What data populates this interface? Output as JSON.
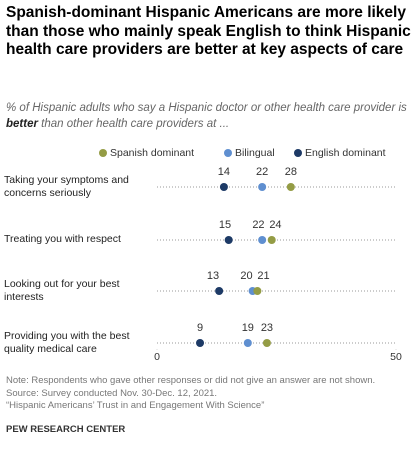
{
  "chart_data": {
    "type": "dot",
    "title": "Spanish-dominant Hispanic Americans are more likely than those who mainly speak English to think Hispanic health care providers are better at key aspects of care",
    "subtitle": [
      "% of Hispanic adults who say a Hispanic doctor or other health care provider is ",
      "better",
      " than other health care providers at ..."
    ],
    "categories": [
      "Taking your symptoms and concerns seriously",
      "Treating you with respect",
      "Looking out for your best interests",
      "Providing you with the best quality medical care"
    ],
    "series": [
      {
        "name": "Spanish dominant",
        "color": "#949c45",
        "values": [
          28,
          24,
          21,
          23
        ]
      },
      {
        "name": "Bilingual",
        "color": "#5f8fd0",
        "values": [
          22,
          22,
          20,
          19
        ]
      },
      {
        "name": "English dominant",
        "color": "#1d3a66",
        "values": [
          14,
          15,
          13,
          9
        ]
      }
    ],
    "xlim": [
      0,
      50
    ],
    "xticks": [
      0,
      50
    ],
    "notes": [
      "Note: Respondents who gave other responses or did not give an answer are not shown.",
      "Source: Survey conducted Nov. 30-Dec. 12, 2021.",
      "“Hispanic Americans’ Trust in and Engagement With Science”"
    ],
    "credit": "PEW RESEARCH CENTER"
  }
}
